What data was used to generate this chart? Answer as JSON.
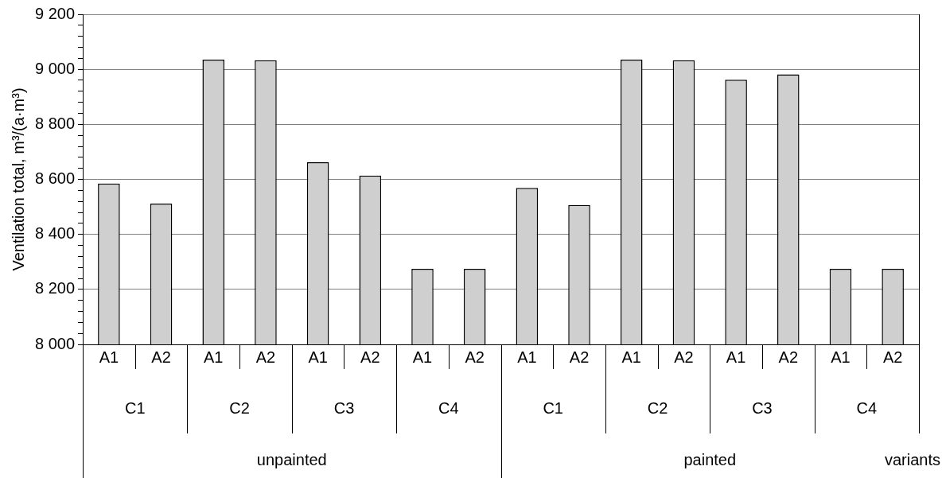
{
  "chart_data": {
    "type": "bar",
    "ylabel": "Ventilation total, m³/(a·m³)",
    "categories": [
      "A1",
      "A2",
      "A1",
      "A2",
      "A1",
      "A2",
      "A1",
      "A2",
      "A1",
      "A2",
      "A1",
      "A2",
      "A1",
      "A2",
      "A1",
      "A2"
    ],
    "values": [
      8585,
      8512,
      9035,
      9033,
      8662,
      8614,
      8275,
      8275,
      8569,
      8507,
      9035,
      9033,
      8962,
      8982,
      8275,
      8275
    ],
    "color": "#d0cfcf",
    "annotations": [
      "C1",
      "C2",
      "C3",
      "C4",
      "C1",
      "C2",
      "C3",
      "C4",
      "unpainted",
      "painted",
      "variants"
    ],
    "ylim": [
      8000,
      9200
    ],
    "yticks": [
      {
        "value": 8000,
        "label": "8 000"
      },
      {
        "value": 8040,
        "label": null
      },
      {
        "value": 8080,
        "label": null
      },
      {
        "value": 8120,
        "label": null
      },
      {
        "value": 8160,
        "label": null
      },
      {
        "value": 8200,
        "label": "8 200"
      },
      {
        "value": 8240,
        "label": null
      },
      {
        "value": 8280,
        "label": null
      },
      {
        "value": 8320,
        "label": null
      },
      {
        "value": 8360,
        "label": null
      },
      {
        "value": 8400,
        "label": "8 400"
      },
      {
        "value": 8440,
        "label": null
      },
      {
        "value": 8480,
        "label": null
      },
      {
        "value": 8520,
        "label": null
      },
      {
        "value": 8560,
        "label": null
      },
      {
        "value": 8600,
        "label": "8 600"
      },
      {
        "value": 8640,
        "label": null
      },
      {
        "value": 8680,
        "label": null
      },
      {
        "value": 8720,
        "label": null
      },
      {
        "value": 8760,
        "label": null
      },
      {
        "value": 8800,
        "label": "8 800"
      },
      {
        "value": 8840,
        "label": null
      },
      {
        "value": 8880,
        "label": null
      },
      {
        "value": 8920,
        "label": null
      },
      {
        "value": 8960,
        "label": null
      },
      {
        "value": 9000,
        "label": "9 000"
      },
      {
        "value": 9040,
        "label": null
      },
      {
        "value": 9080,
        "label": null
      },
      {
        "value": 9120,
        "label": null
      },
      {
        "value": 9160,
        "label": null
      },
      {
        "value": 9200,
        "label": "9 200"
      }
    ],
    "grid": "y",
    "legend": false
  }
}
